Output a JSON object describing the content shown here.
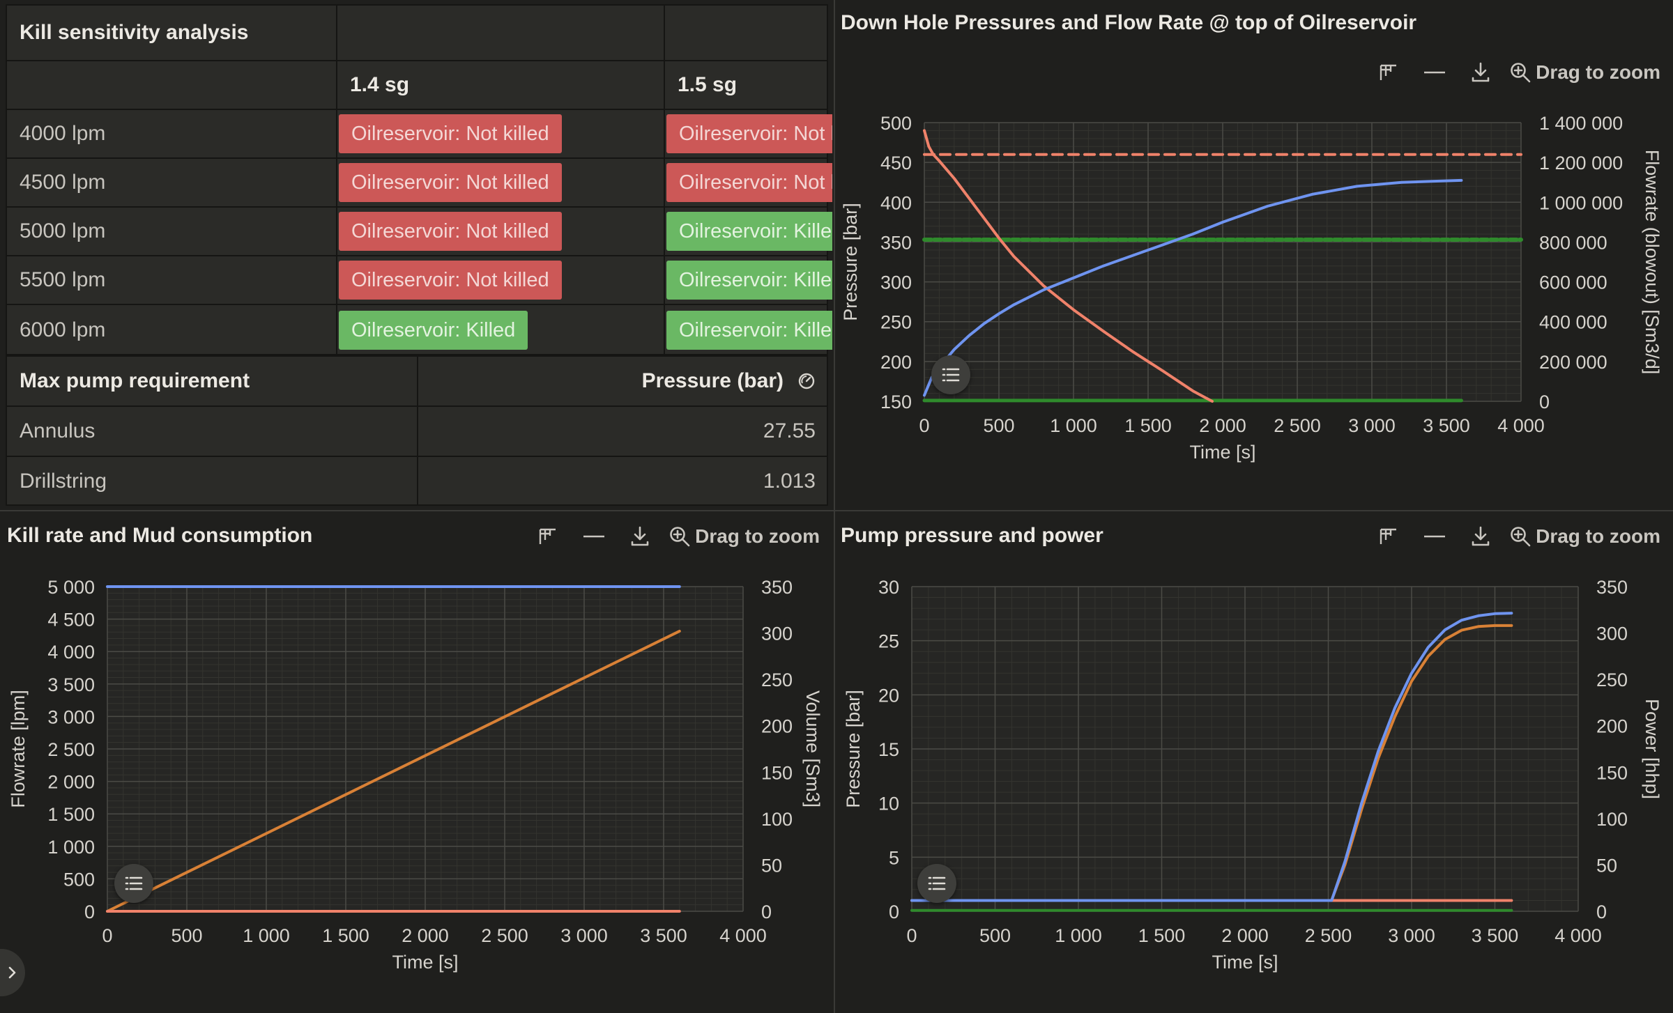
{
  "kill_table": {
    "title": "Kill sensitivity analysis",
    "columns": [
      "1.4 sg",
      "1.5 sg"
    ],
    "rows": [
      {
        "label": "4000 lpm",
        "c1": "Oilreservoir: Not killed",
        "c1_status": "bad",
        "c2": "Oilreservoir: Not killed",
        "c2_status": "bad"
      },
      {
        "label": "4500 lpm",
        "c1": "Oilreservoir: Not killed",
        "c1_status": "bad",
        "c2": "Oilreservoir: Not killed",
        "c2_status": "bad"
      },
      {
        "label": "5000 lpm",
        "c1": "Oilreservoir: Not killed",
        "c1_status": "bad",
        "c2": "Oilreservoir: Killed",
        "c2_status": "good"
      },
      {
        "label": "5500 lpm",
        "c1": "Oilreservoir: Not killed",
        "c1_status": "bad",
        "c2": "Oilreservoir: Killed",
        "c2_status": "good"
      },
      {
        "label": "6000 lpm",
        "c1": "Oilreservoir: Killed",
        "c1_status": "good",
        "c2": "Oilreservoir: Killed",
        "c2_status": "good"
      }
    ]
  },
  "pump_table": {
    "title": "Max pump requirement",
    "value_header": "Pressure (bar)",
    "header_icon": "gauge-icon",
    "rows": [
      {
        "label": "Annulus",
        "value": "27.55"
      },
      {
        "label": "Drillstring",
        "value": "1.013"
      }
    ]
  },
  "toolbar": {
    "icons": [
      "legend-toggle-icon",
      "minus-icon",
      "download-icon",
      "zoom-icon"
    ],
    "zoom_label": "Drag to zoom"
  },
  "colors": {
    "blue": "#6f94f0",
    "salmon": "#f0826a",
    "orange": "#d98136",
    "green": "#2f8a2c",
    "bad": "#cc5857",
    "good": "#6ab864"
  },
  "chart_data": [
    {
      "id": "downhole",
      "type": "line",
      "title": "Down Hole Pressures and Flow Rate @ top of Oilreservoir",
      "xlabel": "Time [s]",
      "ylabel": "Pressure [bar]",
      "y2label": "Flowrate (blowout) [Sm3/d]",
      "xlim": [
        0,
        4000
      ],
      "ylim": [
        150,
        500
      ],
      "y2lim": [
        0,
        1400000
      ],
      "xticks": [
        "0",
        "500",
        "1 000",
        "1 500",
        "2 000",
        "2 500",
        "3 000",
        "3 500",
        "4 000"
      ],
      "yticks": [
        "150",
        "200",
        "250",
        "300",
        "350",
        "400",
        "450",
        "500"
      ],
      "y2ticks": [
        "0",
        "200 000",
        "400 000",
        "600 000",
        "800 000",
        "1 000 000",
        "1 200 000",
        "1 400 000"
      ],
      "grid": true,
      "series": [
        {
          "axis": "y",
          "color": "#f0826a",
          "dash": "14,9",
          "x": [
            0,
            4000
          ],
          "y": [
            460,
            460
          ]
        },
        {
          "axis": "y",
          "color": "#2f8a2c",
          "dash": "10,4",
          "width": 6,
          "x": [
            0,
            4000
          ],
          "y": [
            353,
            353
          ]
        },
        {
          "axis": "y",
          "color": "#2f8a2c",
          "x": [
            0,
            3600
          ],
          "y": [
            151,
            151
          ],
          "width": 5
        },
        {
          "axis": "y",
          "color": "#f0826a",
          "x": [
            0,
            30,
            60,
            100,
            200,
            300,
            400,
            500,
            600,
            800,
            1000,
            1200,
            1400,
            1600,
            1800,
            1900,
            1930
          ],
          "y": [
            490,
            470,
            460,
            452,
            430,
            405,
            380,
            355,
            332,
            295,
            265,
            238,
            212,
            188,
            163,
            153,
            150
          ]
        },
        {
          "axis": "y2",
          "color": "#6f94f0",
          "x": [
            0,
            50,
            100,
            200,
            300,
            400,
            500,
            600,
            800,
            1000,
            1200,
            1500,
            1800,
            2000,
            2300,
            2600,
            2900,
            3200,
            3400,
            3600
          ],
          "y": [
            30000,
            120000,
            170000,
            260000,
            330000,
            390000,
            440000,
            485000,
            560000,
            620000,
            680000,
            760000,
            840000,
            900000,
            980000,
            1040000,
            1080000,
            1100000,
            1105000,
            1110000
          ]
        }
      ]
    },
    {
      "id": "killrate",
      "type": "line",
      "title": "Kill rate and Mud consumption",
      "xlabel": "Time [s]",
      "ylabel": "Flowrate [lpm]",
      "y2label": "Volume [Sm3]",
      "xlim": [
        0,
        4000
      ],
      "ylim": [
        0,
        5000
      ],
      "y2lim": [
        0,
        350
      ],
      "xticks": [
        "0",
        "500",
        "1 000",
        "1 500",
        "2 000",
        "2 500",
        "3 000",
        "3 500",
        "4 000"
      ],
      "yticks": [
        "0",
        "500",
        "1 000",
        "1 500",
        "2 000",
        "2 500",
        "3 000",
        "3 500",
        "4 000",
        "4 500",
        "5 000"
      ],
      "y2ticks": [
        "0",
        "50",
        "100",
        "150",
        "200",
        "250",
        "300",
        "350"
      ],
      "grid": true,
      "series": [
        {
          "axis": "y",
          "color": "#6f94f0",
          "x": [
            0,
            3600
          ],
          "y": [
            5000,
            5000
          ]
        },
        {
          "axis": "y2",
          "color": "#d98136",
          "x": [
            0,
            3600
          ],
          "y": [
            0,
            302
          ]
        },
        {
          "axis": "y",
          "color": "#f0826a",
          "x": [
            0,
            3600
          ],
          "y": [
            0,
            0
          ]
        }
      ]
    },
    {
      "id": "pump",
      "type": "line",
      "title": "Pump pressure and power",
      "xlabel": "Time [s]",
      "ylabel": "Pressure [bar]",
      "y2label": "Power [hhp]",
      "xlim": [
        0,
        4000
      ],
      "ylim": [
        0,
        30
      ],
      "y2lim": [
        0,
        350
      ],
      "xticks": [
        "0",
        "500",
        "1 000",
        "1 500",
        "2 000",
        "2 500",
        "3 000",
        "3 500",
        "4 000"
      ],
      "yticks": [
        "0",
        "5",
        "10",
        "15",
        "20",
        "25",
        "30"
      ],
      "y2ticks": [
        "0",
        "50",
        "100",
        "150",
        "200",
        "250",
        "300",
        "350"
      ],
      "grid": true,
      "series": [
        {
          "axis": "y",
          "color": "#2f8a2c",
          "x": [
            0,
            3600
          ],
          "y": [
            0.08,
            0.08
          ]
        },
        {
          "axis": "y",
          "color": "#f0826a",
          "x": [
            0,
            3600
          ],
          "y": [
            1.0,
            1.0
          ]
        },
        {
          "axis": "y2",
          "color": "#d98136",
          "x": [
            2520,
            2600,
            2700,
            2800,
            2900,
            3000,
            3100,
            3200,
            3300,
            3400,
            3500,
            3600
          ],
          "y": [
            12,
            50,
            110,
            165,
            210,
            248,
            275,
            293,
            303,
            307,
            308,
            308
          ]
        },
        {
          "axis": "y",
          "color": "#6f94f0",
          "x": [
            0,
            2520,
            2600,
            2700,
            2800,
            2900,
            3000,
            3100,
            3200,
            3300,
            3400,
            3500,
            3600
          ],
          "y": [
            1.0,
            1.0,
            4.6,
            10.0,
            14.8,
            18.8,
            22.0,
            24.4,
            26.0,
            26.9,
            27.3,
            27.5,
            27.55
          ]
        }
      ]
    }
  ]
}
